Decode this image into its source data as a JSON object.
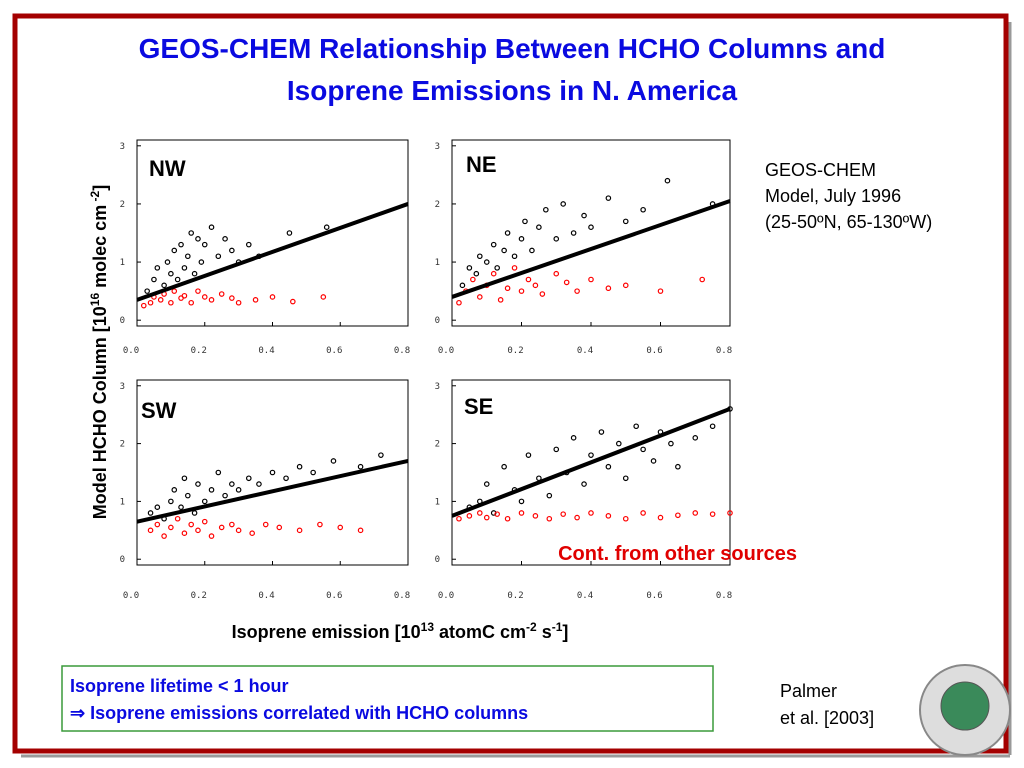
{
  "title": [
    "GEOS-CHEM Relationship Between HCHO Columns and",
    "Isoprene Emissions in N. America"
  ],
  "ylabel": [
    "Model HCHO Column [10",
    "16",
    " molec cm",
    " -2",
    "]"
  ],
  "xlabel": [
    "Isoprene emission [10",
    "13",
    " atomC cm",
    "-2",
    " s",
    "-1",
    "]"
  ],
  "model_note": [
    "GEOS-CHEM",
    "Model, July 1996",
    "(25-50ºN, 65-130ºW)"
  ],
  "box_note": [
    "Isoprene lifetime < 1 hour",
    "⇒ Isoprene emissions correlated with HCHO columns"
  ],
  "citation": [
    "Palmer",
    "et al. [2003]"
  ],
  "chart_data": [
    {
      "type": "scatter",
      "title": "NW",
      "xlim": [
        0,
        0.8
      ],
      "ylim": [
        -0.1,
        3.1
      ],
      "xticks": [
        {
          "value": 0,
          "label": "0.0"
        },
        {
          "value": 0.2,
          "label": "0.2"
        },
        {
          "value": 0.4,
          "label": "0.4"
        },
        {
          "value": 0.6,
          "label": "0.6"
        },
        {
          "value": 0.8,
          "label": "0.8"
        }
      ],
      "yticks": [
        0,
        1,
        2,
        3
      ],
      "series": [
        {
          "color": "#000000",
          "style": "markers",
          "x": [
            0.03,
            0.05,
            0.06,
            0.08,
            0.09,
            0.1,
            0.11,
            0.12,
            0.13,
            0.14,
            0.15,
            0.16,
            0.17,
            0.18,
            0.19,
            0.2,
            0.22,
            0.24,
            0.26,
            0.28,
            0.3,
            0.33,
            0.36,
            0.45,
            0.56
          ],
          "values": [
            0.5,
            0.7,
            0.9,
            0.6,
            1.0,
            0.8,
            1.2,
            0.7,
            1.3,
            0.9,
            1.1,
            1.5,
            0.8,
            1.4,
            1.0,
            1.3,
            1.6,
            1.1,
            1.4,
            1.2,
            1.0,
            1.3,
            1.1,
            1.5,
            1.6
          ]
        },
        {
          "color": "#ff0000",
          "style": "markers",
          "x": [
            0.02,
            0.04,
            0.05,
            0.07,
            0.08,
            0.1,
            0.11,
            0.13,
            0.14,
            0.16,
            0.18,
            0.2,
            0.22,
            0.25,
            0.28,
            0.3,
            0.35,
            0.4,
            0.46,
            0.55
          ],
          "values": [
            0.25,
            0.3,
            0.4,
            0.35,
            0.45,
            0.3,
            0.5,
            0.38,
            0.42,
            0.3,
            0.5,
            0.4,
            0.35,
            0.45,
            0.38,
            0.3,
            0.35,
            0.4,
            0.32,
            0.4
          ]
        },
        {
          "color": "#000000",
          "style": "line",
          "x": [
            0,
            0.8
          ],
          "values": [
            0.35,
            2.0
          ]
        }
      ]
    },
    {
      "type": "scatter",
      "title": "NE",
      "xlim": [
        0,
        0.8
      ],
      "ylim": [
        -0.1,
        3.1
      ],
      "xticks": [
        {
          "value": 0,
          "label": "0.0"
        },
        {
          "value": 0.2,
          "label": "0.2"
        },
        {
          "value": 0.4,
          "label": "0.4"
        },
        {
          "value": 0.6,
          "label": "0.6"
        },
        {
          "value": 0.8,
          "label": "0.8"
        }
      ],
      "yticks": [
        0,
        1,
        2,
        3
      ],
      "series": [
        {
          "color": "#000000",
          "style": "markers",
          "x": [
            0.03,
            0.05,
            0.07,
            0.08,
            0.1,
            0.12,
            0.13,
            0.15,
            0.16,
            0.18,
            0.2,
            0.21,
            0.23,
            0.25,
            0.27,
            0.3,
            0.32,
            0.35,
            0.38,
            0.4,
            0.45,
            0.5,
            0.55,
            0.62,
            0.75
          ],
          "values": [
            0.6,
            0.9,
            0.8,
            1.1,
            1.0,
            1.3,
            0.9,
            1.2,
            1.5,
            1.1,
            1.4,
            1.7,
            1.2,
            1.6,
            1.9,
            1.4,
            2.0,
            1.5,
            1.8,
            1.6,
            2.1,
            1.7,
            1.9,
            2.4,
            2.0
          ]
        },
        {
          "color": "#ff0000",
          "style": "markers",
          "x": [
            0.02,
            0.04,
            0.06,
            0.08,
            0.1,
            0.12,
            0.14,
            0.16,
            0.18,
            0.2,
            0.22,
            0.24,
            0.26,
            0.3,
            0.33,
            0.36,
            0.4,
            0.45,
            0.5,
            0.6,
            0.72
          ],
          "values": [
            0.3,
            0.5,
            0.7,
            0.4,
            0.6,
            0.8,
            0.35,
            0.55,
            0.9,
            0.5,
            0.7,
            0.6,
            0.45,
            0.8,
            0.65,
            0.5,
            0.7,
            0.55,
            0.6,
            0.5,
            0.7
          ]
        },
        {
          "color": "#000000",
          "style": "line",
          "x": [
            0,
            0.8
          ],
          "values": [
            0.4,
            2.05
          ]
        }
      ]
    },
    {
      "type": "scatter",
      "title": "SW",
      "xlim": [
        0,
        0.8
      ],
      "ylim": [
        -0.1,
        3.1
      ],
      "xticks": [
        {
          "value": 0,
          "label": "0.0"
        },
        {
          "value": 0.2,
          "label": "0.2"
        },
        {
          "value": 0.4,
          "label": "0.4"
        },
        {
          "value": 0.6,
          "label": "0.6"
        },
        {
          "value": 0.8,
          "label": "0.8"
        }
      ],
      "yticks": [
        0,
        1,
        2,
        3
      ],
      "series": [
        {
          "color": "#000000",
          "style": "markers",
          "x": [
            0.04,
            0.06,
            0.08,
            0.1,
            0.11,
            0.13,
            0.14,
            0.15,
            0.17,
            0.18,
            0.2,
            0.22,
            0.24,
            0.26,
            0.28,
            0.3,
            0.33,
            0.36,
            0.4,
            0.44,
            0.48,
            0.52,
            0.58,
            0.66,
            0.72
          ],
          "values": [
            0.8,
            0.9,
            0.7,
            1.0,
            1.2,
            0.9,
            1.4,
            1.1,
            0.8,
            1.3,
            1.0,
            1.2,
            1.5,
            1.1,
            1.3,
            1.2,
            1.4,
            1.3,
            1.5,
            1.4,
            1.6,
            1.5,
            1.7,
            1.6,
            1.8
          ]
        },
        {
          "color": "#ff0000",
          "style": "markers",
          "x": [
            0.04,
            0.06,
            0.08,
            0.1,
            0.12,
            0.14,
            0.16,
            0.18,
            0.2,
            0.22,
            0.25,
            0.28,
            0.3,
            0.34,
            0.38,
            0.42,
            0.48,
            0.54,
            0.6,
            0.66
          ],
          "values": [
            0.5,
            0.6,
            0.4,
            0.55,
            0.7,
            0.45,
            0.6,
            0.5,
            0.65,
            0.4,
            0.55,
            0.6,
            0.5,
            0.45,
            0.6,
            0.55,
            0.5,
            0.6,
            0.55,
            0.5
          ]
        },
        {
          "color": "#000000",
          "style": "line",
          "x": [
            0,
            0.8
          ],
          "values": [
            0.65,
            1.7
          ]
        }
      ]
    },
    {
      "type": "scatter",
      "title": "SE",
      "annotation": "Cont. from other sources",
      "xlim": [
        0,
        0.8
      ],
      "ylim": [
        -0.1,
        3.1
      ],
      "xticks": [
        {
          "value": 0,
          "label": "0.0"
        },
        {
          "value": 0.2,
          "label": "0.2"
        },
        {
          "value": 0.4,
          "label": "0.4"
        },
        {
          "value": 0.6,
          "label": "0.6"
        },
        {
          "value": 0.8,
          "label": "0.8"
        }
      ],
      "yticks": [
        0,
        1,
        2,
        3
      ],
      "series": [
        {
          "color": "#000000",
          "style": "markers",
          "x": [
            0.05,
            0.08,
            0.1,
            0.12,
            0.15,
            0.18,
            0.2,
            0.22,
            0.25,
            0.28,
            0.3,
            0.33,
            0.35,
            0.38,
            0.4,
            0.43,
            0.45,
            0.48,
            0.5,
            0.53,
            0.55,
            0.58,
            0.6,
            0.63,
            0.65,
            0.7,
            0.75,
            0.8
          ],
          "values": [
            0.9,
            1.0,
            1.3,
            0.8,
            1.6,
            1.2,
            1.0,
            1.8,
            1.4,
            1.1,
            1.9,
            1.5,
            2.1,
            1.3,
            1.8,
            2.2,
            1.6,
            2.0,
            1.4,
            2.3,
            1.9,
            1.7,
            2.2,
            2.0,
            1.6,
            2.1,
            2.3,
            2.6
          ]
        },
        {
          "color": "#ff0000",
          "style": "markers",
          "x": [
            0.02,
            0.05,
            0.08,
            0.1,
            0.13,
            0.16,
            0.2,
            0.24,
            0.28,
            0.32,
            0.36,
            0.4,
            0.45,
            0.5,
            0.55,
            0.6,
            0.65,
            0.7,
            0.75,
            0.8
          ],
          "values": [
            0.7,
            0.75,
            0.8,
            0.72,
            0.78,
            0.7,
            0.8,
            0.75,
            0.7,
            0.78,
            0.72,
            0.8,
            0.75,
            0.7,
            0.8,
            0.72,
            0.76,
            0.8,
            0.78,
            0.8
          ]
        },
        {
          "color": "#000000",
          "style": "line",
          "x": [
            0,
            0.8
          ],
          "values": [
            0.75,
            2.6
          ]
        }
      ]
    }
  ]
}
